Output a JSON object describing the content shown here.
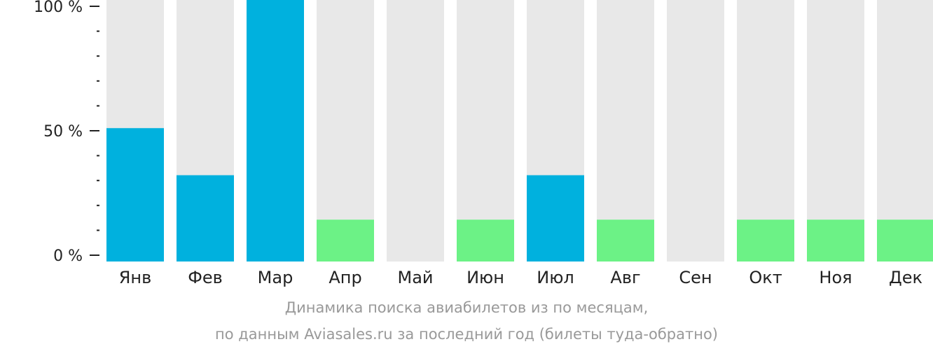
{
  "chart_data": {
    "type": "bar",
    "categories": [
      "Янв",
      "Фев",
      "Мар",
      "Апр",
      "Май",
      "Июн",
      "Июл",
      "Авг",
      "Сен",
      "Окт",
      "Ноя",
      "Дек"
    ],
    "values": [
      51,
      33,
      100,
      16,
      0,
      16,
      33,
      16,
      0,
      16,
      16,
      16
    ],
    "bar_colors": [
      "#00b1de",
      "#00b1de",
      "#00b1de",
      "#6cf286",
      "#6cf286",
      "#6cf286",
      "#00b1de",
      "#6cf286",
      "#6cf286",
      "#6cf286",
      "#6cf286",
      "#6cf286"
    ],
    "background_bar_color": "#e8e8e8",
    "ylim": [
      0,
      100
    ],
    "yticks": [
      {
        "value": 100,
        "label": "100 %"
      },
      {
        "value": 50,
        "label": "50 %"
      },
      {
        "value": 0,
        "label": "0 %"
      }
    ],
    "minor_tick_step": 10,
    "grid": false,
    "legend": "none"
  },
  "caption": {
    "line1": "Динамика поиска авиабилетов из  по месяцам,",
    "line2": "по данным Aviasales.ru за последний год (билеты туда-обратно)"
  }
}
